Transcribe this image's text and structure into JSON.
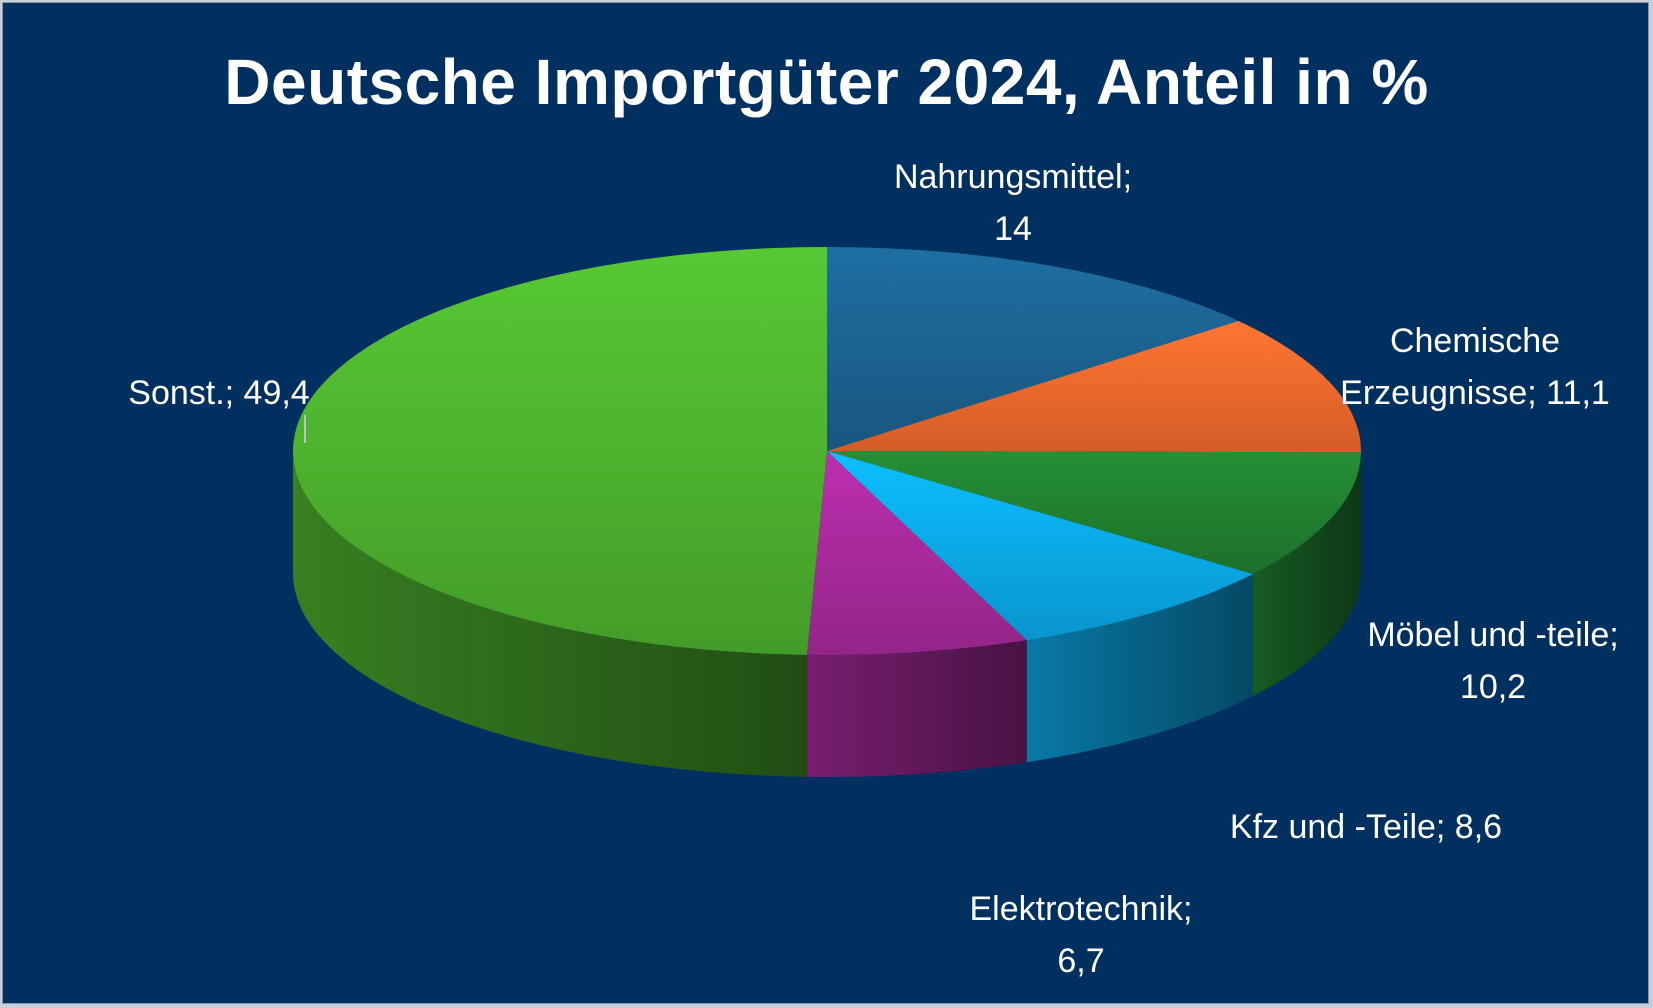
{
  "chart_data": {
    "type": "pie",
    "title": "Deutsche Importgüter 2024, Anteil in %",
    "slices": [
      {
        "name": "Nahrungsmittel",
        "value": 14,
        "display_value": "14",
        "label": "Nahrungsmittel;\n14",
        "color": "#1a5e8a"
      },
      {
        "name": "Chemische Erzeugnisse",
        "value": 11.1,
        "display_value": "11,1",
        "label": "Chemische\nErzeugnisse; 11,1",
        "color": "#e8642a"
      },
      {
        "name": "Möbel und -teile",
        "value": 10.2,
        "display_value": "10,2",
        "label": "Möbel und -teile;\n10,2",
        "color": "#1f7a2e"
      },
      {
        "name": "Kfz und -Teile",
        "value": 8.6,
        "display_value": "8,6",
        "label": "Kfz und -Teile; 8,6",
        "color": "#0aa2df"
      },
      {
        "name": "Elektrotechnik",
        "value": 6.7,
        "display_value": "6,7",
        "label": "Elektrotechnik;\n6,7",
        "color": "#a02894"
      },
      {
        "name": "Sonst.",
        "value": 49.4,
        "display_value": "49,4",
        "label": "Sonst.; 49,4",
        "color": "#4aaa2c"
      }
    ],
    "style": "3d-pie",
    "background": "#00305f",
    "legend": "none"
  }
}
